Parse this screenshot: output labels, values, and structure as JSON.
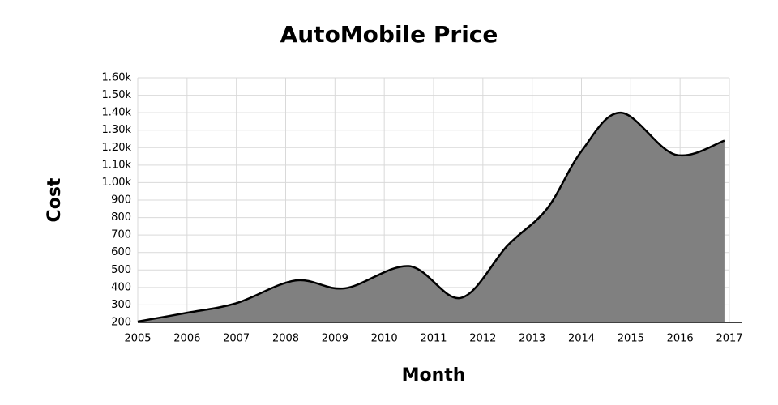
{
  "chart_data": {
    "type": "area",
    "title": "AutoMobile Price",
    "x_label": "Month",
    "y_label": "Cost",
    "x": [
      2005,
      2006,
      2007,
      2008.2,
      2009.2,
      2010.5,
      2011.55,
      2012.5,
      2013.3,
      2014,
      2014.8,
      2015.9,
      2016.9
    ],
    "series": [
      {
        "name": "Cost",
        "color": "#808080",
        "values": [
          205,
          255,
          310,
          440,
          395,
          522,
          340,
          640,
          850,
          1180,
          1400,
          1160,
          1240
        ]
      }
    ],
    "xlim": [
      2005,
      2017
    ],
    "xticks": [
      2005,
      2006,
      2007,
      2008,
      2009,
      2010,
      2011,
      2012,
      2013,
      2014,
      2015,
      2016,
      2017
    ],
    "ylim": [
      200,
      1600
    ],
    "yticks": [
      200,
      300,
      400,
      500,
      600,
      700,
      800,
      900,
      {
        "value": 1000,
        "label": "1.00k"
      },
      {
        "value": 1100,
        "label": "1.10k"
      },
      {
        "value": 1200,
        "label": "1.20k"
      },
      {
        "value": 1300,
        "label": "1.30k"
      },
      {
        "value": 1400,
        "label": "1.40k"
      },
      {
        "value": 1500,
        "label": "1.50k"
      },
      {
        "value": 1600,
        "label": "1.60k"
      }
    ],
    "grid": true
  }
}
